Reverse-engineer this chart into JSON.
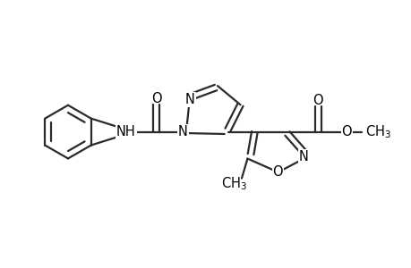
{
  "background_color": "#ffffff",
  "line_color": "#2a2a2a",
  "line_width": 1.6,
  "font_size": 10.5,
  "fig_width": 4.6,
  "fig_height": 3.0,
  "dpi": 100,
  "xlim": [
    -0.5,
    9.0
  ],
  "ylim": [
    0.8,
    6.2
  ]
}
